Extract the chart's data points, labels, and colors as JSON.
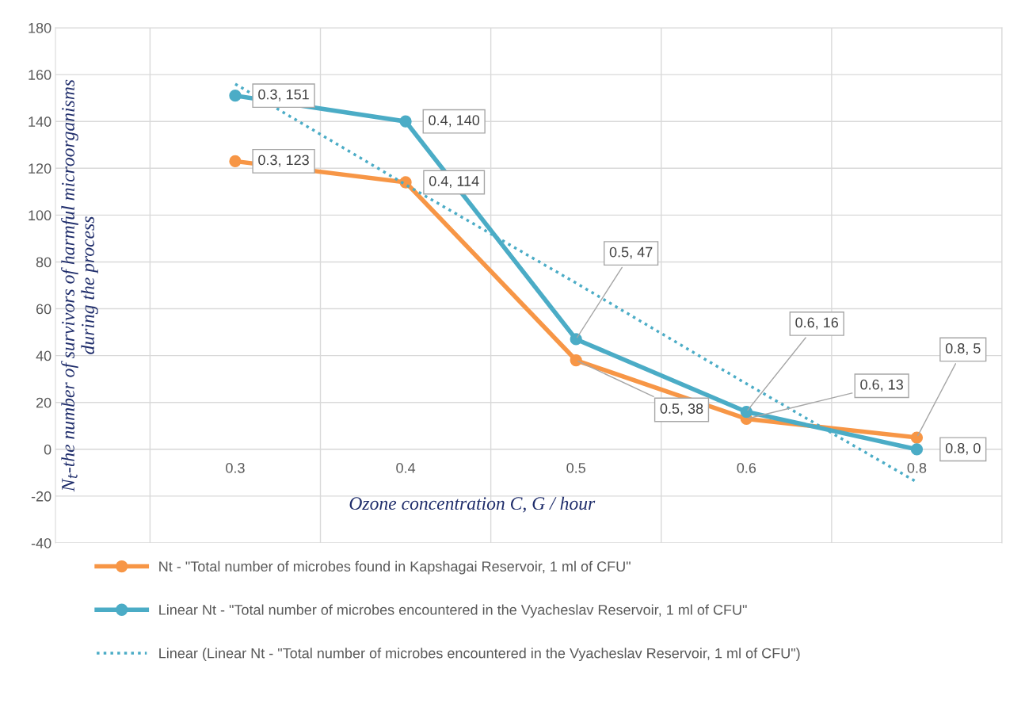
{
  "chart_data": {
    "type": "line",
    "xlabel": "Ozone concentration C, G / hour",
    "ylabel": "N$_{t}$-the number of survivors of harmful microorganisms\nduring the process",
    "categories": [
      "0.3",
      "0.4",
      "0.5",
      "0.6",
      "0.8"
    ],
    "series": [
      {
        "name": "Nt - \"Total number of microbes found in Kapshagai Reservoir, 1 ml of CFU\"",
        "color": "#f79646",
        "values": [
          123,
          114,
          38,
          13,
          5
        ],
        "value_labels": [
          "0.3, 123",
          "0.4, 114",
          "0.5, 38",
          "0.6, 13",
          "0.8, 5"
        ]
      },
      {
        "name": "Linear Nt - \"Total number of microbes encountered in the Vyacheslav Reservoir, 1 ml of CFU\"",
        "color": "#4bacc6",
        "values": [
          151,
          140,
          47,
          16,
          0
        ],
        "value_labels": [
          "0.3, 151",
          "0.4, 140",
          "0.5, 47",
          "0.6, 16",
          "0.8, 0"
        ]
      },
      {
        "name": "Linear (Linear Nt - \"Total number of microbes encountered in the Vyacheslav Reservoir, 1 ml of CFU\")",
        "color": "#4bacc6",
        "values": [
          156,
          113,
          71,
          28,
          -14
        ],
        "marker": "none",
        "line_style": "dotted"
      }
    ],
    "ylim": [
      -40,
      180
    ],
    "yticks": [
      -40,
      -20,
      0,
      20,
      40,
      60,
      80,
      100,
      120,
      140,
      160,
      180
    ],
    "grid": true,
    "legend": "bottom",
    "marker": "circle",
    "line_style": "solid"
  }
}
